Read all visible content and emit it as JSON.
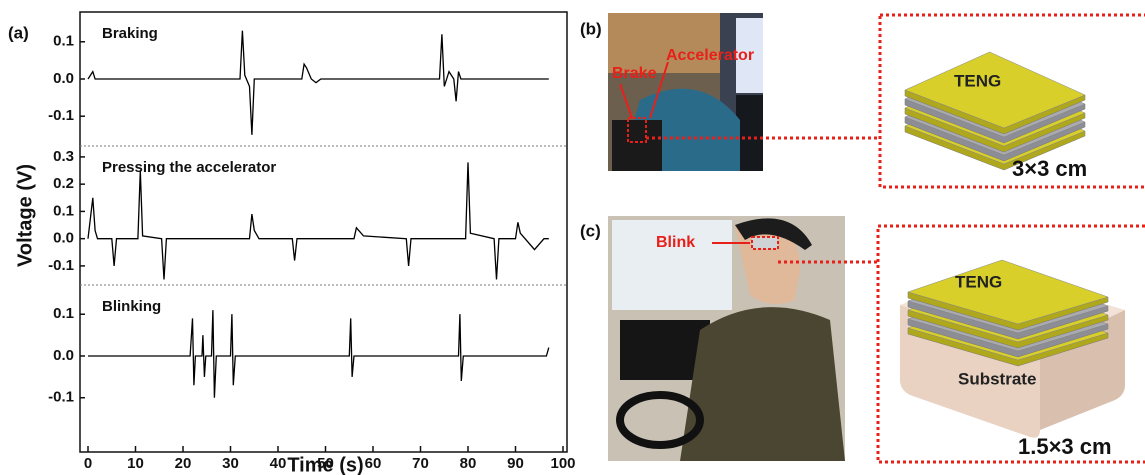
{
  "panel_labels": [
    "(a)",
    "(b)",
    "(c)"
  ],
  "chart_data": [
    {
      "type": "line",
      "annotation": "Braking",
      "ylim": [
        -0.18,
        0.18
      ],
      "yticks": [
        0.1,
        {
          "value": 0,
          "label": "0.0"
        },
        -0.1
      ],
      "x": [
        0,
        1,
        1.5,
        32,
        32.5,
        33,
        34,
        34.5,
        35,
        45,
        45.5,
        46,
        47,
        48,
        49,
        74,
        74.5,
        75,
        76,
        77,
        77.5,
        78,
        78.5,
        97
      ],
      "series": [
        {
          "color": "#000000",
          "values": [
            0,
            0.02,
            0,
            0,
            0.13,
            0.01,
            -0.02,
            -0.15,
            0,
            0,
            0.04,
            0.03,
            0,
            -0.01,
            0,
            0,
            0.12,
            -0.02,
            0.02,
            0,
            -0.06,
            0.02,
            0,
            0
          ]
        }
      ]
    },
    {
      "type": "line",
      "annotation": "Pressing the accelerator",
      "ylabel": "Voltage (V)",
      "ylim": [
        -0.17,
        0.34
      ],
      "yticks": [
        0.3,
        0.2,
        0.1,
        {
          "value": 0,
          "label": "0.0"
        },
        -0.1
      ],
      "x": [
        0,
        1,
        1.5,
        2,
        5,
        5.5,
        6,
        10.5,
        11,
        11.5,
        15.5,
        16,
        16.5,
        34,
        34.5,
        35,
        36,
        43,
        43.5,
        44,
        56,
        56.5,
        58,
        67,
        67.5,
        68,
        79.5,
        80,
        80.5,
        85.5,
        86,
        86.5,
        90,
        90.5,
        91,
        94,
        96,
        97
      ],
      "series": [
        {
          "color": "#000000",
          "values": [
            0,
            0.15,
            0.03,
            0,
            0,
            -0.1,
            0,
            0,
            0.25,
            0.01,
            0,
            -0.15,
            0,
            0,
            0.09,
            0.03,
            0,
            0,
            -0.08,
            0,
            0,
            0.04,
            0.01,
            0,
            -0.1,
            0,
            0,
            0.28,
            0.02,
            0,
            -0.15,
            0,
            0,
            0.06,
            0.02,
            -0.04,
            0,
            0
          ]
        }
      ]
    },
    {
      "type": "line",
      "annotation": "Blinking",
      "xlabel": "Time (s)",
      "xlim": [
        0,
        100
      ],
      "xticks": [
        0,
        10,
        20,
        30,
        40,
        50,
        60,
        70,
        80,
        90,
        100
      ],
      "ylim": [
        -0.23,
        0.17
      ],
      "yticks": [
        0.1,
        {
          "value": 0,
          "label": "0.0"
        },
        -0.1
      ],
      "x": [
        0,
        21.5,
        22,
        22.3,
        22.6,
        24,
        24.2,
        24.5,
        24.8,
        26,
        26.3,
        26.6,
        27,
        30,
        30.3,
        30.6,
        31,
        55,
        55.3,
        55.6,
        56,
        78,
        78.3,
        78.6,
        79,
        96.5,
        97
      ],
      "series": [
        {
          "color": "#000000",
          "values": [
            0,
            0,
            0.09,
            -0.07,
            0,
            0,
            0.05,
            -0.05,
            0,
            0,
            0.11,
            -0.1,
            0,
            0,
            0.1,
            -0.07,
            0,
            0,
            0.09,
            -0.05,
            0,
            0,
            0.1,
            -0.06,
            0,
            0,
            0.02
          ]
        }
      ]
    }
  ],
  "photo_b": {
    "labels": [
      "Brake",
      "Accelerator"
    ]
  },
  "device_b": {
    "label": "TENG",
    "size": "3×3 cm"
  },
  "photo_c": {
    "labels": [
      "Blink"
    ]
  },
  "device_c": {
    "label": "TENG",
    "substrate": "Substrate",
    "size": "1.5×3 cm"
  }
}
